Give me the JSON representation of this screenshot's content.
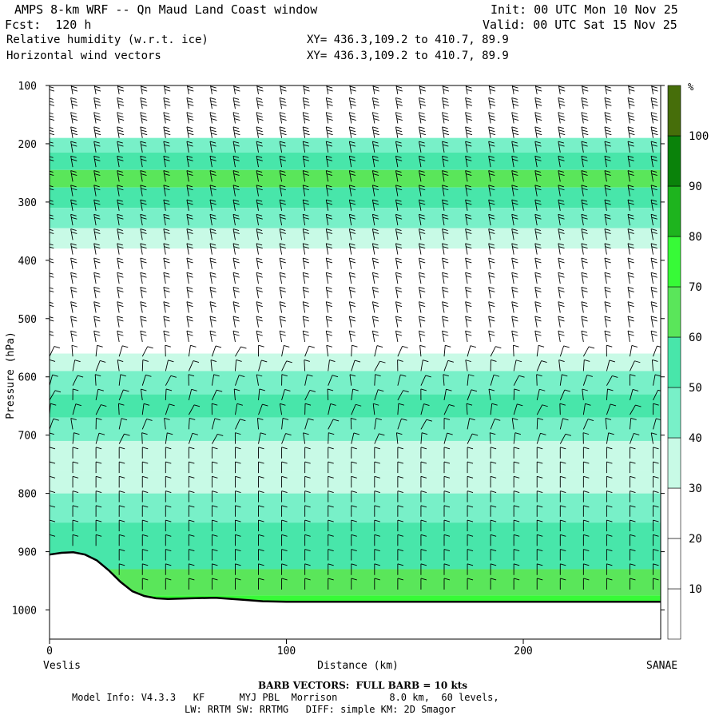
{
  "header": {
    "title": "AMPS 8-km WRF -- Qn Maud Land Coast window",
    "forecast": "Fcst:  120 h",
    "init": "Init: 00 UTC Mon 10 Nov 25",
    "valid": "Valid: 00 UTC Sat 15 Nov 25",
    "field1": "Relative humidity (w.r.t. ice)",
    "field2": "Horizontal wind vectors",
    "xy1": "XY= 436.3,109.2 to 410.7, 89.9",
    "xy2": "XY= 436.3,109.2 to 410.7, 89.9"
  },
  "footer": {
    "barb_note": "BARB VECTORS:  FULL BARB = 10 kts",
    "model_line1": "Model Info: V4.3.3   KF      MYJ PBL  Morrison         8.0 km,  60 levels,",
    "model_line2": "LW: RRTM SW: RRTMG   DIFF: simple KM: 2D Smagor"
  },
  "colors": {
    "terrain_line": "#000000",
    "rh_0_30": "#ffffff",
    "rh_30_40": "#c8fae6",
    "rh_40_50": "#78f0c8",
    "rh_50_60": "#48e6aa",
    "rh_60_70": "#5ae65a",
    "rh_70_80": "#37fa37"
  },
  "chart_data": {
    "type": "heatmap",
    "title": "Relative humidity (w.r.t. ice)",
    "xlabel": "Distance (km)",
    "ylabel": "Pressure (hPa)",
    "xlim": [
      0,
      258
    ],
    "ylim": [
      1050,
      100
    ],
    "x_ticks": [
      0,
      100,
      200
    ],
    "y_ticks": [
      100,
      200,
      300,
      400,
      500,
      600,
      700,
      800,
      900,
      1000
    ],
    "x_start_label": "Veslis",
    "x_end_label": "SANAE",
    "colorbar": {
      "unit": "%",
      "labels": [
        10,
        20,
        30,
        40,
        50,
        60,
        70,
        80,
        90,
        100
      ],
      "colors": [
        "#ffffff",
        "#ffffff",
        "#ffffff",
        "#c8fae6",
        "#78f0c8",
        "#48e6aa",
        "#5ae65a",
        "#37fa37",
        "#1eb41e",
        "#0a820a",
        "#466e0a"
      ]
    },
    "rh_bands": [
      {
        "p_top": 100,
        "p_bottom": 190,
        "rh": 10
      },
      {
        "p_top": 190,
        "p_bottom": 215,
        "rh": 45
      },
      {
        "p_top": 215,
        "p_bottom": 245,
        "rh": 55
      },
      {
        "p_top": 245,
        "p_bottom": 275,
        "rh": 65
      },
      {
        "p_top": 275,
        "p_bottom": 310,
        "rh": 55
      },
      {
        "p_top": 310,
        "p_bottom": 345,
        "rh": 45
      },
      {
        "p_top": 345,
        "p_bottom": 380,
        "rh": 35
      },
      {
        "p_top": 380,
        "p_bottom": 560,
        "rh": 20
      },
      {
        "p_top": 560,
        "p_bottom": 590,
        "rh": 35
      },
      {
        "p_top": 590,
        "p_bottom": 630,
        "rh": 45
      },
      {
        "p_top": 630,
        "p_bottom": 670,
        "rh": 55
      },
      {
        "p_top": 670,
        "p_bottom": 710,
        "rh": 45
      },
      {
        "p_top": 710,
        "p_bottom": 760,
        "rh": 35
      },
      {
        "p_top": 760,
        "p_bottom": 800,
        "rh": 30
      },
      {
        "p_top": 800,
        "p_bottom": 850,
        "rh": 45
      },
      {
        "p_top": 850,
        "p_bottom": 930,
        "rh": 55
      },
      {
        "p_top": 930,
        "p_bottom": 975,
        "rh": 65
      },
      {
        "p_top": 975,
        "p_bottom": 985,
        "rh": 75
      }
    ],
    "terrain_surface_pressure": {
      "x": [
        0,
        5,
        10,
        15,
        20,
        25,
        30,
        35,
        40,
        45,
        50,
        60,
        70,
        80,
        90,
        100,
        120,
        150,
        200,
        258
      ],
      "p": [
        905,
        902,
        901,
        905,
        915,
        932,
        952,
        968,
        976,
        980,
        981,
        980,
        979,
        982,
        985,
        986,
        986,
        986,
        986,
        986
      ]
    },
    "wind_barb_note": "FULL BARB = 10 kts"
  }
}
